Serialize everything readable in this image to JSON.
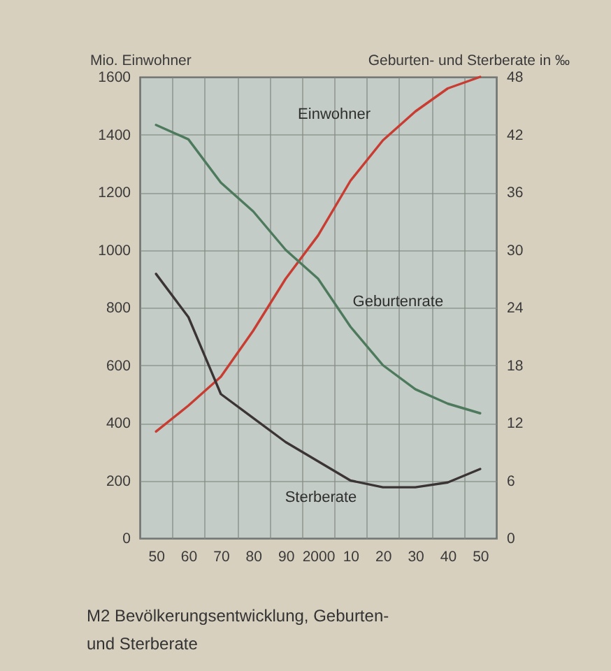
{
  "chart_data": {
    "type": "line",
    "categories": [
      "50",
      "60",
      "70",
      "80",
      "90",
      "2000",
      "10",
      "20",
      "30",
      "40",
      "50"
    ],
    "ylabel": "Mio. Einwohner",
    "y2label": "Geburten- und Sterberate in ‰",
    "ylim": [
      0,
      1600
    ],
    "yticks": [
      0,
      200,
      400,
      600,
      800,
      1000,
      1200,
      1400,
      1600
    ],
    "y2lim": [
      0,
      48
    ],
    "y2ticks": [
      0,
      6,
      12,
      18,
      24,
      30,
      36,
      42,
      48
    ],
    "series": [
      {
        "name": "Einwohner",
        "color": "#c83c32",
        "values": [
          370,
          460,
          560,
          720,
          900,
          1050,
          1240,
          1380,
          1480,
          1560,
          1600
        ]
      },
      {
        "name": "Geburtenrate",
        "color": "#4d7a5c",
        "axis": "y2",
        "values": [
          43,
          41.5,
          37,
          34,
          30,
          27,
          22,
          18,
          15.5,
          14,
          13
        ]
      },
      {
        "name": "Sterberate",
        "color": "#3b3434",
        "axis": "y2",
        "values": [
          27.5,
          23,
          15,
          12.5,
          10,
          8,
          6,
          5.3,
          5.3,
          5.8,
          7.2
        ]
      }
    ],
    "grid": true,
    "annotations": [
      "M2 Bevölkerungsentwicklung, Geburten- und Sterberate"
    ]
  }
}
